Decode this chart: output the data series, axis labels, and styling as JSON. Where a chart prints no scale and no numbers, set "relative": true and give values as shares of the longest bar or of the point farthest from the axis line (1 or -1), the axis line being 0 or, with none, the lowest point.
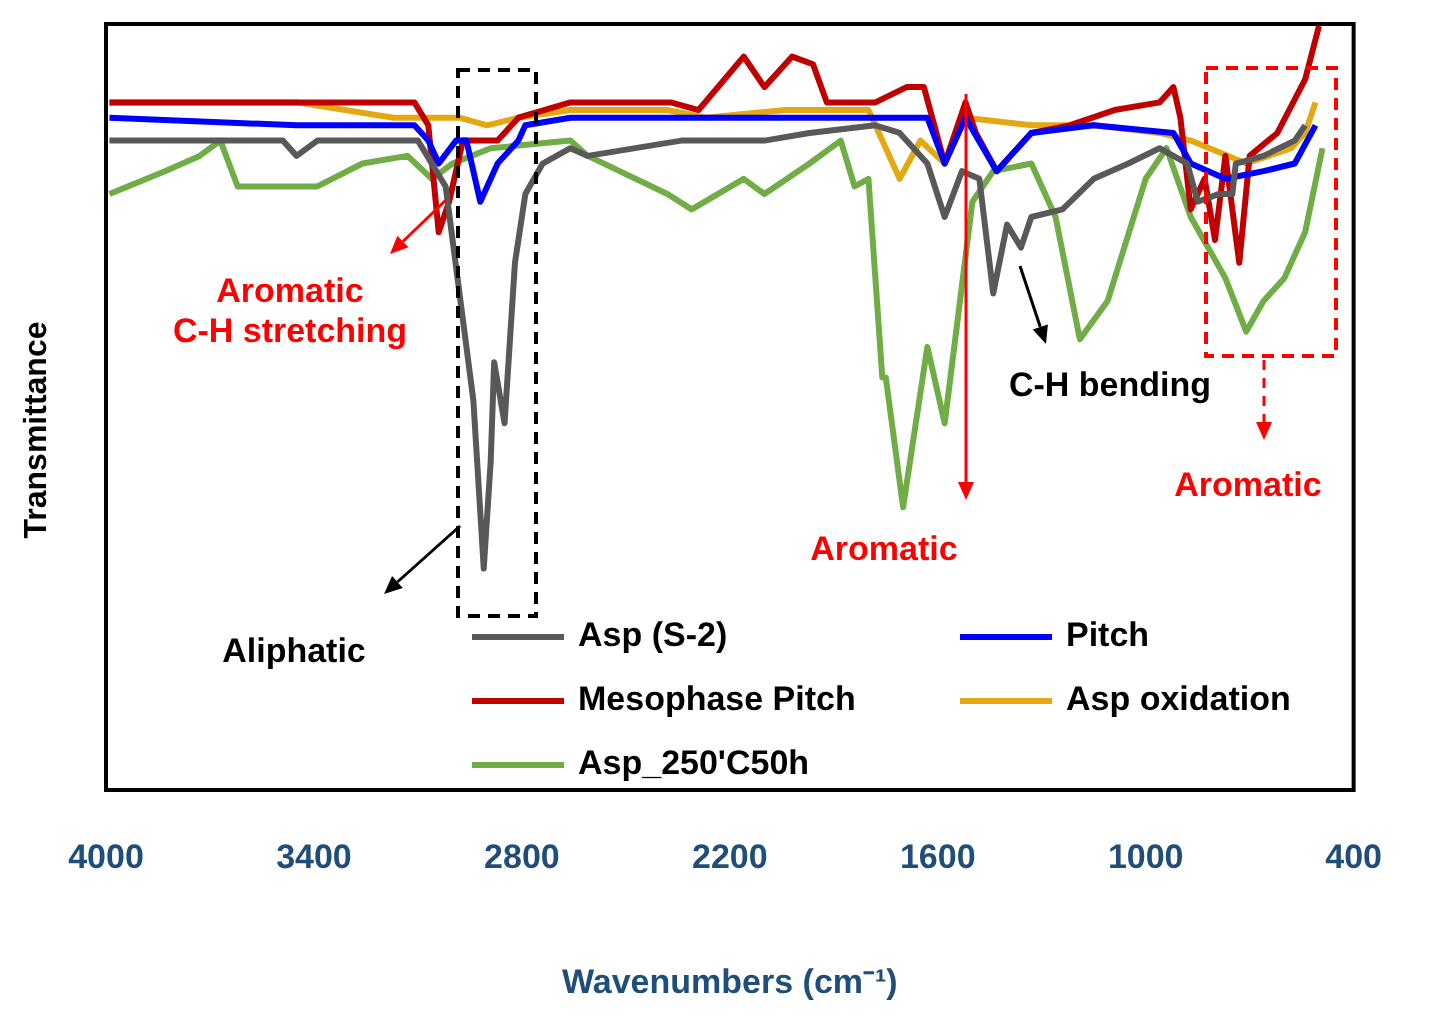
{
  "chart_data": {
    "type": "line",
    "relative": true,
    "xlabel": "Wavenumbers (cm⁻¹)",
    "ylabel": "Transmittance",
    "xlim": [
      4000,
      400
    ],
    "xticks": [
      4000,
      3400,
      2800,
      2200,
      1600,
      1000,
      400
    ],
    "grid": false,
    "legend": "bottom",
    "annotations": [
      "Aromatic\nC-H stretching",
      "Aliphatic",
      "Aromatic",
      "C-H bending",
      "Aromatic"
    ],
    "series": [
      {
        "name": "Asp (S-2)",
        "color": "#595959",
        "x": [
          3990,
          3490,
          3450,
          3390,
          3100,
          3020,
          2940,
          2910,
          2890,
          2880,
          2850,
          2820,
          2790,
          2740,
          2660,
          2610,
          2340,
          2100,
          1970,
          1780,
          1710,
          1630,
          1580,
          1530,
          1480,
          1440,
          1400,
          1360,
          1330,
          1240,
          1150,
          1050,
          960,
          880,
          850,
          790,
          750,
          740,
          660,
          570,
          540
        ],
        "values": [
          0.85,
          0.85,
          0.83,
          0.85,
          0.85,
          0.79,
          0.51,
          0.29,
          0.43,
          0.56,
          0.48,
          0.69,
          0.78,
          0.82,
          0.84,
          0.83,
          0.85,
          0.85,
          0.86,
          0.87,
          0.86,
          0.82,
          0.75,
          0.81,
          0.8,
          0.65,
          0.74,
          0.71,
          0.75,
          0.76,
          0.8,
          0.82,
          0.84,
          0.82,
          0.77,
          0.78,
          0.78,
          0.82,
          0.83,
          0.85,
          0.87
        ]
      },
      {
        "name": "Pitch",
        "color": "#0000ff",
        "x": [
          3990,
          3450,
          3110,
          3070,
          3040,
          2990,
          2960,
          2920,
          2870,
          2810,
          2790,
          2660,
          2330,
          1930,
          1710,
          1630,
          1580,
          1520,
          1430,
          1330,
          1150,
          920,
          870,
          770,
          660,
          570,
          510
        ],
        "values": [
          0.88,
          0.87,
          0.87,
          0.85,
          0.82,
          0.85,
          0.85,
          0.77,
          0.82,
          0.85,
          0.87,
          0.88,
          0.88,
          0.88,
          0.88,
          0.88,
          0.82,
          0.88,
          0.81,
          0.86,
          0.87,
          0.86,
          0.82,
          0.8,
          0.81,
          0.82,
          0.87
        ]
      },
      {
        "name": "Mesophase Pitch",
        "color": "#c00000",
        "x": [
          3990,
          3450,
          3110,
          3070,
          3040,
          3010,
          2970,
          2930,
          2870,
          2810,
          2660,
          2370,
          2290,
          2160,
          2100,
          2020,
          1960,
          1920,
          1780,
          1690,
          1640,
          1580,
          1520,
          1490,
          1430,
          1330,
          1220,
          1090,
          960,
          920,
          900,
          870,
          830,
          800,
          770,
          730,
          700,
          620,
          540,
          500
        ],
        "values": [
          0.9,
          0.9,
          0.9,
          0.87,
          0.73,
          0.77,
          0.85,
          0.85,
          0.85,
          0.88,
          0.9,
          0.9,
          0.89,
          0.96,
          0.92,
          0.96,
          0.95,
          0.9,
          0.9,
          0.92,
          0.92,
          0.82,
          0.9,
          0.86,
          0.81,
          0.86,
          0.87,
          0.89,
          0.9,
          0.92,
          0.88,
          0.76,
          0.8,
          0.72,
          0.83,
          0.69,
          0.83,
          0.86,
          0.93,
          1
        ]
      },
      {
        "name": "Asp oxidation",
        "color": "#e4a812",
        "x": [
          3990,
          3450,
          3170,
          3070,
          2980,
          2900,
          2810,
          2660,
          2380,
          2270,
          2040,
          1800,
          1760,
          1710,
          1650,
          1580,
          1520,
          1330,
          1150,
          960,
          870,
          710,
          580,
          540,
          510
        ],
        "values": [
          0.9,
          0.9,
          0.88,
          0.88,
          0.88,
          0.87,
          0.88,
          0.89,
          0.89,
          0.88,
          0.89,
          0.89,
          0.85,
          0.8,
          0.85,
          0.82,
          0.88,
          0.87,
          0.87,
          0.86,
          0.85,
          0.82,
          0.84,
          0.86,
          0.9
        ]
      },
      {
        "name": "Asp_250'C50h",
        "color": "#70ad47",
        "x": [
          3990,
          3830,
          3730,
          3670,
          3620,
          3450,
          3390,
          3260,
          3130,
          3060,
          3000,
          2890,
          2660,
          2610,
          2380,
          2310,
          2160,
          2100,
          1970,
          1880,
          1840,
          1800,
          1760,
          1750,
          1700,
          1630,
          1580,
          1500,
          1440,
          1330,
          1260,
          1190,
          1110,
          1000,
          940,
          870,
          770,
          710,
          660,
          600,
          540,
          490
        ],
        "values": [
          0.78,
          0.81,
          0.83,
          0.85,
          0.79,
          0.79,
          0.79,
          0.82,
          0.83,
          0.8,
          0.82,
          0.84,
          0.85,
          0.83,
          0.78,
          0.76,
          0.8,
          0.78,
          0.82,
          0.85,
          0.79,
          0.8,
          0.54,
          0.54,
          0.37,
          0.58,
          0.48,
          0.77,
          0.81,
          0.82,
          0.75,
          0.59,
          0.64,
          0.8,
          0.84,
          0.75,
          0.67,
          0.6,
          0.64,
          0.67,
          0.73,
          0.84
        ]
      }
    ]
  }
}
